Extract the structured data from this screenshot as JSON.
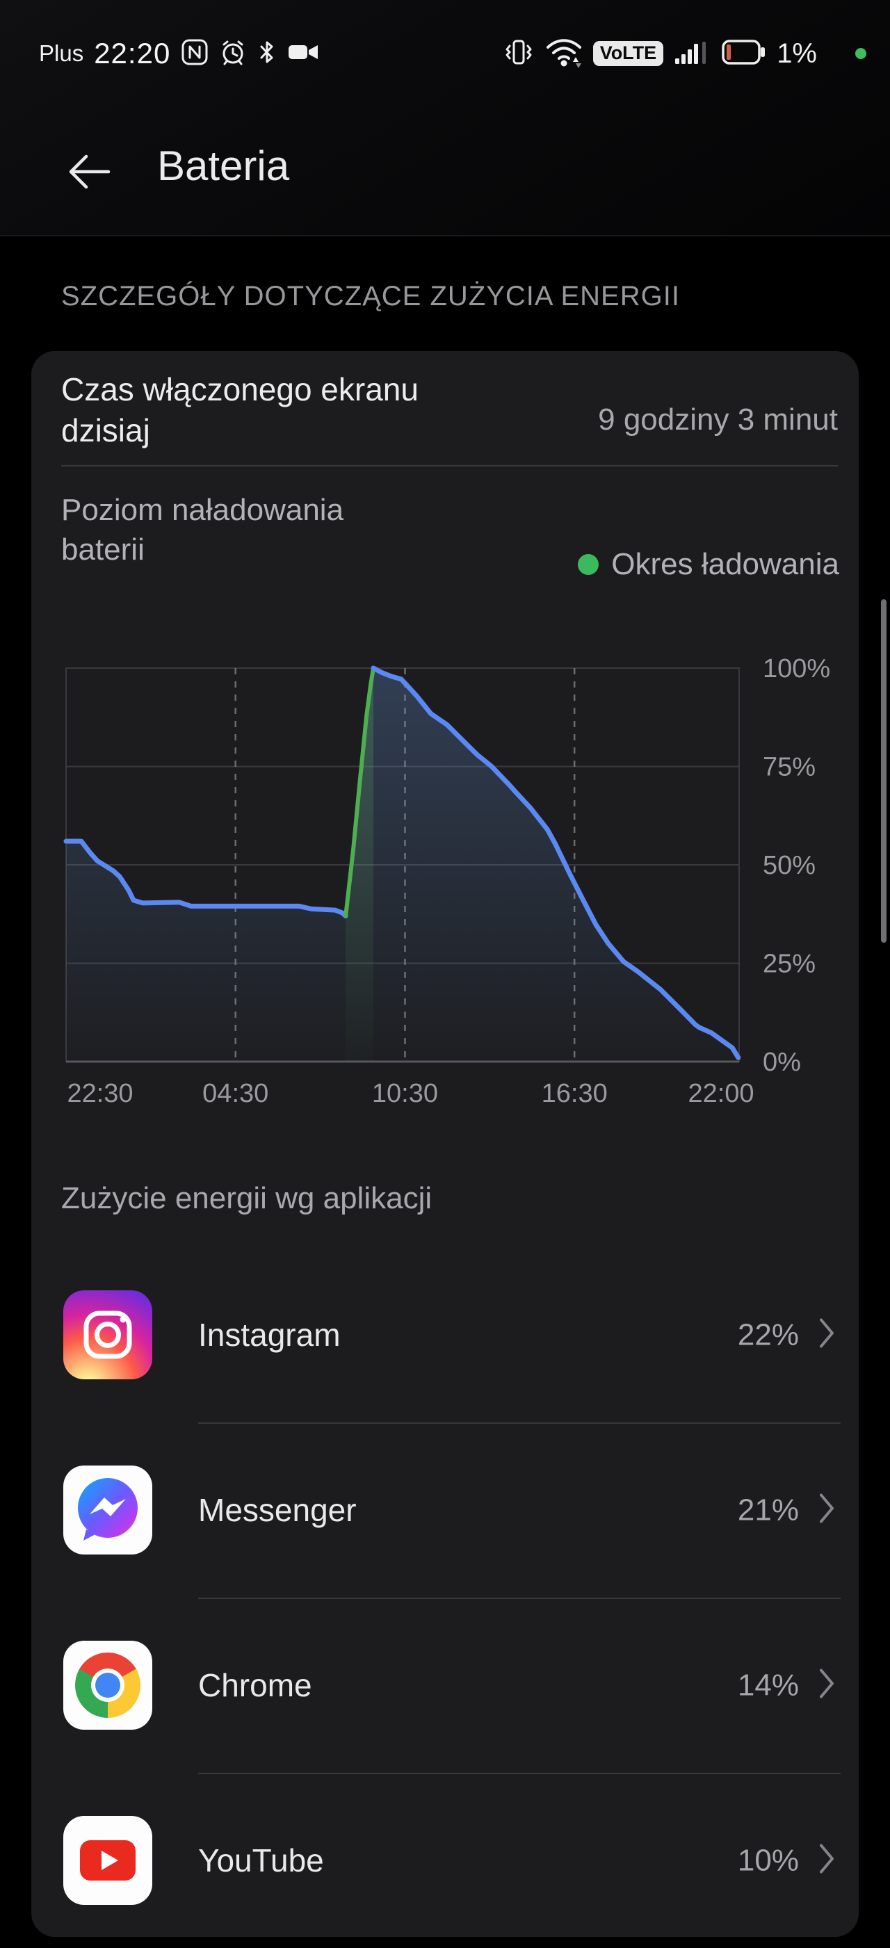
{
  "status_bar": {
    "carrier": "Plus",
    "time": "22:20",
    "volte_label": "VoLTE",
    "battery_percent": "1%",
    "colors": {
      "battery_sliver": "#cf5f4e",
      "notification_dot": "#3fbe5c"
    }
  },
  "header": {
    "title": "Bateria"
  },
  "section_label": "SZCZEGÓŁY DOTYCZĄCE ZUŻYCIA ENERGII",
  "screen_time": {
    "label": "Czas włączonego ekranu dzisiaj",
    "value": "9 godziny 3 minut"
  },
  "battery_level": {
    "label": "Poziom naładowania baterii",
    "legend": "Okres ładowania",
    "legend_color": "#3cb95e"
  },
  "chart_data": {
    "type": "line",
    "title": "Poziom naładowania baterii",
    "ylabel_ticks": [
      "100%",
      "75%",
      "50%",
      "25%",
      "0%"
    ],
    "xlabel_ticks": [
      "22:30",
      "04:30",
      "10:30",
      "16:30",
      "22:00"
    ],
    "ylim": [
      0,
      100
    ],
    "x_unit": "hours_since_22:30",
    "x_span_hours": 23.83,
    "grid": {
      "h_lines_pct": [
        100,
        75,
        50,
        25,
        0
      ],
      "v_dashed_hours": [
        6,
        12,
        18
      ]
    },
    "legend": [
      {
        "label": "Okres ładowania",
        "color": "#4caf50"
      }
    ],
    "series": [
      {
        "name": "discharge-before-charging",
        "color": "#5c88f2",
        "kind": "discharge",
        "points": [
          [
            0,
            56
          ],
          [
            0.54,
            56
          ],
          [
            0.86,
            53
          ],
          [
            1.11,
            51
          ],
          [
            1.67,
            48.5
          ],
          [
            1.9,
            47
          ],
          [
            2.22,
            43.5
          ],
          [
            2.39,
            41
          ],
          [
            2.71,
            40.3
          ],
          [
            4.01,
            40.5
          ],
          [
            4.43,
            39.5
          ],
          [
            8.25,
            39.5
          ],
          [
            8.69,
            38.8
          ],
          [
            9.53,
            38.5
          ],
          [
            9.78,
            37.8
          ],
          [
            9.9,
            37
          ]
        ]
      },
      {
        "name": "charging-period",
        "color": "#4caf50",
        "kind": "charging",
        "points": [
          [
            9.9,
            37
          ],
          [
            10.17,
            54
          ],
          [
            10.4,
            71
          ],
          [
            10.64,
            88
          ],
          [
            10.79,
            96
          ],
          [
            10.88,
            100
          ]
        ]
      },
      {
        "name": "discharge-after-charging",
        "color": "#5c88f2",
        "kind": "discharge",
        "points": [
          [
            10.88,
            100
          ],
          [
            11.2,
            98.8
          ],
          [
            11.52,
            97.9
          ],
          [
            11.86,
            97.2
          ],
          [
            12.01,
            96.1
          ],
          [
            12.43,
            92.8
          ],
          [
            12.92,
            88.4
          ],
          [
            13.49,
            85.6
          ],
          [
            14.23,
            80.3
          ],
          [
            14.57,
            77.9
          ],
          [
            15.07,
            75
          ],
          [
            15.71,
            70.2
          ],
          [
            15.88,
            68.8
          ],
          [
            16.45,
            64.4
          ],
          [
            17.04,
            59
          ],
          [
            17.31,
            55.5
          ],
          [
            17.85,
            47.5
          ],
          [
            18.29,
            41.3
          ],
          [
            18.76,
            34.8
          ],
          [
            19.2,
            30
          ],
          [
            19.74,
            25.4
          ],
          [
            20.24,
            22.9
          ],
          [
            21.05,
            18.3
          ],
          [
            21.72,
            13.5
          ],
          [
            22.28,
            9.4
          ],
          [
            22.41,
            8.7
          ],
          [
            22.85,
            7.3
          ],
          [
            23.59,
            3.5
          ],
          [
            23.8,
            1
          ]
        ]
      }
    ]
  },
  "apps_section": {
    "title": "Zużycie energii wg aplikacji",
    "items": [
      {
        "name": "Instagram",
        "percent": "22%"
      },
      {
        "name": "Messenger",
        "percent": "21%"
      },
      {
        "name": "Chrome",
        "percent": "14%"
      },
      {
        "name": "YouTube",
        "percent": "10%"
      }
    ]
  }
}
